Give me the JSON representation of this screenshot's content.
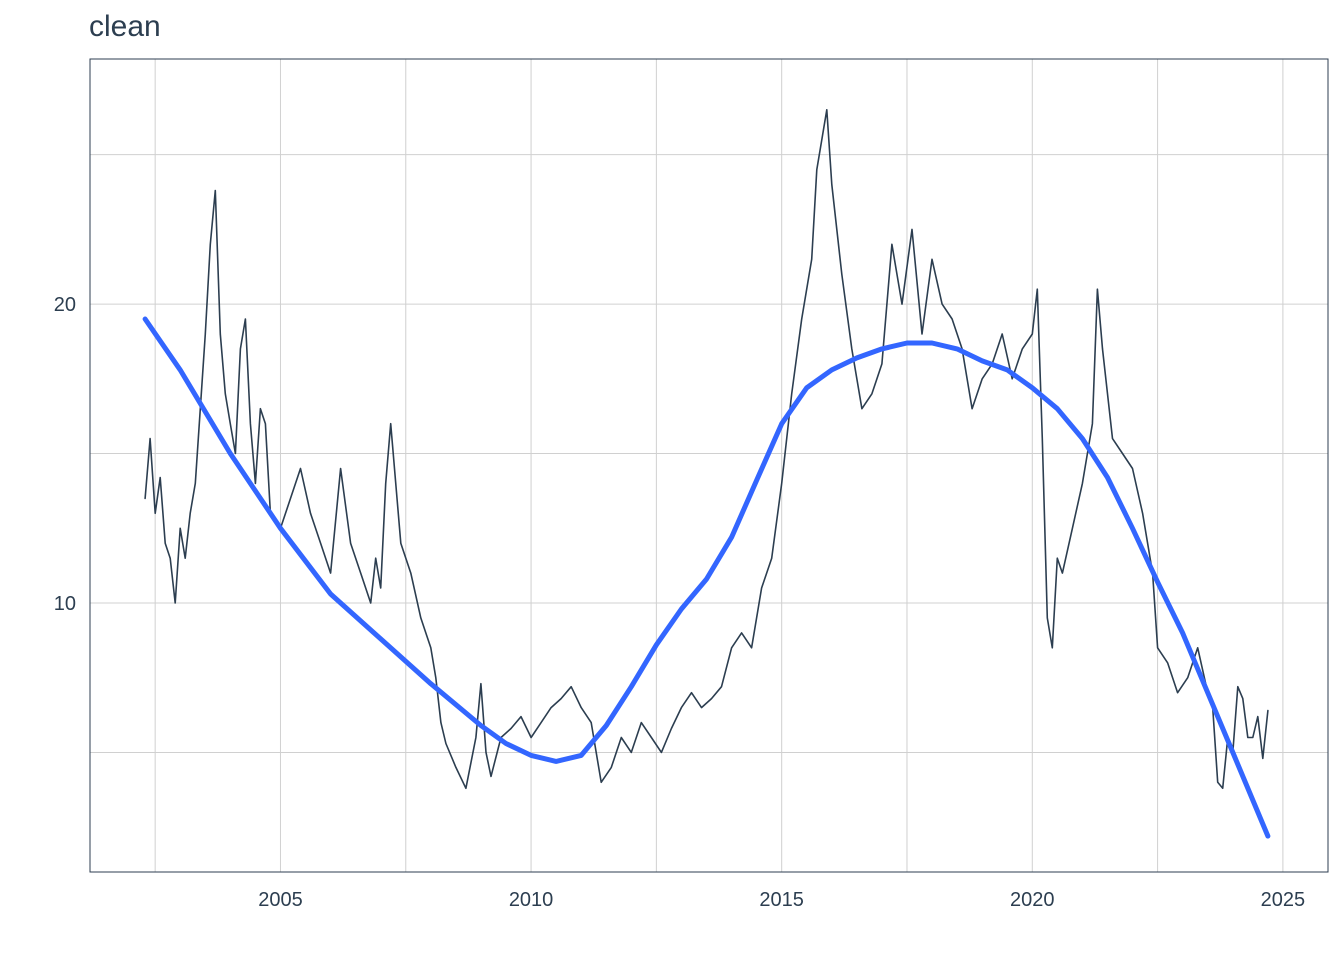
{
  "chart_data": {
    "type": "line",
    "title": "clean",
    "xlabel": "",
    "ylabel": "",
    "xlim": [
      2001.2,
      2025.9
    ],
    "ylim": [
      1.0,
      28.2
    ],
    "x_ticks": [
      2005,
      2010,
      2015,
      2020,
      2025
    ],
    "y_ticks": [
      10,
      20
    ],
    "grid": true,
    "colors": {
      "series": "#2c3e50",
      "smooth": "#3366ff",
      "grid": "#d0d0d0",
      "border": "#2c3e50"
    },
    "series": [
      {
        "kind": "line",
        "x": [
          2002.3,
          2002.4,
          2002.5,
          2002.6,
          2002.7,
          2002.8,
          2002.9,
          2003.0,
          2003.1,
          2003.2,
          2003.3,
          2003.4,
          2003.5,
          2003.6,
          2003.7,
          2003.8,
          2003.9,
          2004.0,
          2004.1,
          2004.2,
          2004.3,
          2004.4,
          2004.5,
          2004.6,
          2004.7,
          2004.8,
          2004.9,
          2005.0,
          2005.2,
          2005.4,
          2005.6,
          2005.8,
          2006.0,
          2006.2,
          2006.4,
          2006.6,
          2006.8,
          2006.9,
          2007.0,
          2007.1,
          2007.2,
          2007.4,
          2007.6,
          2007.8,
          2008.0,
          2008.1,
          2008.2,
          2008.3,
          2008.5,
          2008.7,
          2008.9,
          2009.0,
          2009.1,
          2009.2,
          2009.4,
          2009.6,
          2009.8,
          2010.0,
          2010.2,
          2010.4,
          2010.6,
          2010.8,
          2011.0,
          2011.2,
          2011.4,
          2011.6,
          2011.8,
          2012.0,
          2012.2,
          2012.4,
          2012.6,
          2012.8,
          2013.0,
          2013.2,
          2013.4,
          2013.6,
          2013.8,
          2014.0,
          2014.2,
          2014.4,
          2014.6,
          2014.8,
          2015.0,
          2015.2,
          2015.4,
          2015.6,
          2015.7,
          2015.8,
          2015.9,
          2016.0,
          2016.2,
          2016.4,
          2016.6,
          2016.8,
          2017.0,
          2017.2,
          2017.4,
          2017.6,
          2017.8,
          2018.0,
          2018.2,
          2018.4,
          2018.6,
          2018.8,
          2019.0,
          2019.2,
          2019.4,
          2019.6,
          2019.8,
          2020.0,
          2020.1,
          2020.2,
          2020.3,
          2020.4,
          2020.5,
          2020.6,
          2020.8,
          2021.0,
          2021.2,
          2021.3,
          2021.4,
          2021.6,
          2021.8,
          2022.0,
          2022.2,
          2022.4,
          2022.5,
          2022.7,
          2022.9,
          2023.1,
          2023.3,
          2023.5,
          2023.6,
          2023.7,
          2023.8,
          2023.9,
          2024.0,
          2024.1,
          2024.2,
          2024.3,
          2024.4,
          2024.5,
          2024.6,
          2024.7
        ],
        "y": [
          13.5,
          15.5,
          13.0,
          14.2,
          12.0,
          11.5,
          10.0,
          12.5,
          11.5,
          13.0,
          14.0,
          16.5,
          19.0,
          22.0,
          23.8,
          19.0,
          17.0,
          16.0,
          15.0,
          18.5,
          19.5,
          16.0,
          14.0,
          16.5,
          16.0,
          13.0,
          12.8,
          12.5,
          13.5,
          14.5,
          13.0,
          12.0,
          11.0,
          14.5,
          12.0,
          11.0,
          10.0,
          11.5,
          10.5,
          14.0,
          16.0,
          12.0,
          11.0,
          9.5,
          8.5,
          7.5,
          6.0,
          5.3,
          4.5,
          3.8,
          5.5,
          7.3,
          5.0,
          4.2,
          5.5,
          5.8,
          6.2,
          5.5,
          6.0,
          6.5,
          6.8,
          7.2,
          6.5,
          6.0,
          4.0,
          4.5,
          5.5,
          5.0,
          6.0,
          5.5,
          5.0,
          5.8,
          6.5,
          7.0,
          6.5,
          6.8,
          7.2,
          8.5,
          9.0,
          8.5,
          10.5,
          11.5,
          14.0,
          17.0,
          19.5,
          21.5,
          24.5,
          25.5,
          26.5,
          24.0,
          21.0,
          18.5,
          16.5,
          17.0,
          18.0,
          22.0,
          20.0,
          22.5,
          19.0,
          21.5,
          20.0,
          19.5,
          18.5,
          16.5,
          17.5,
          18.0,
          19.0,
          17.5,
          18.5,
          19.0,
          20.5,
          15.5,
          9.5,
          8.5,
          11.5,
          11.0,
          12.5,
          14.0,
          16.0,
          20.5,
          18.5,
          15.5,
          15.0,
          14.5,
          13.0,
          11.0,
          8.5,
          8.0,
          7.0,
          7.5,
          8.5,
          7.0,
          6.5,
          4.0,
          3.8,
          5.5,
          5.0,
          7.2,
          6.8,
          5.5,
          5.5,
          6.2,
          4.8,
          6.4
        ]
      },
      {
        "kind": "smooth",
        "x": [
          2002.3,
          2003.0,
          2004.0,
          2005.0,
          2006.0,
          2007.0,
          2008.0,
          2009.0,
          2009.5,
          2010.0,
          2010.5,
          2011.0,
          2011.5,
          2012.0,
          2012.5,
          2013.0,
          2013.5,
          2014.0,
          2014.5,
          2015.0,
          2015.5,
          2016.0,
          2016.5,
          2017.0,
          2017.5,
          2018.0,
          2018.5,
          2019.0,
          2019.5,
          2020.0,
          2020.5,
          2021.0,
          2021.5,
          2022.0,
          2022.5,
          2023.0,
          2023.5,
          2024.0,
          2024.7
        ],
        "y": [
          19.5,
          17.8,
          15.0,
          12.5,
          10.3,
          8.8,
          7.3,
          5.9,
          5.3,
          4.9,
          4.7,
          4.9,
          5.9,
          7.2,
          8.6,
          9.8,
          10.8,
          12.2,
          14.1,
          16.0,
          17.2,
          17.8,
          18.2,
          18.5,
          18.7,
          18.7,
          18.5,
          18.1,
          17.8,
          17.2,
          16.5,
          15.5,
          14.2,
          12.5,
          10.7,
          9.0,
          7.0,
          5.0,
          2.2
        ]
      }
    ]
  }
}
